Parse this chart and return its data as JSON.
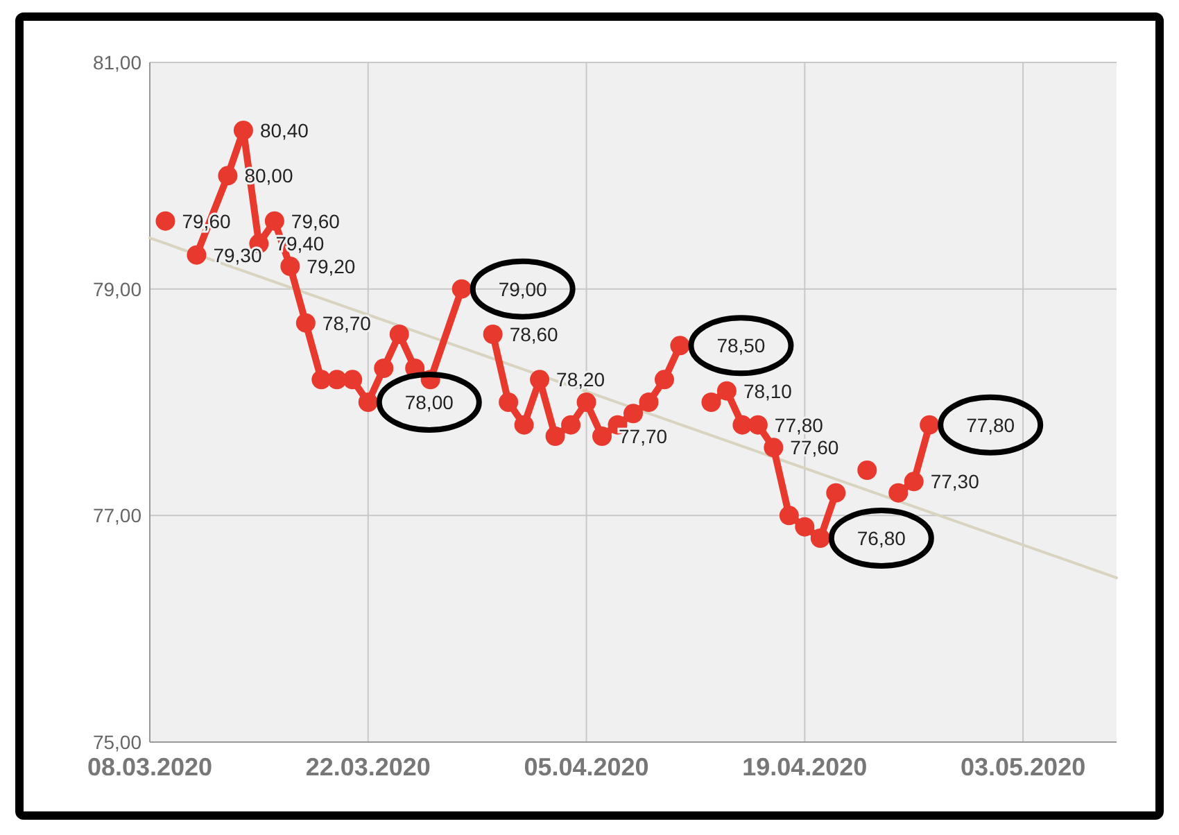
{
  "chart_data": {
    "type": "line",
    "x": [
      "2020-03-09",
      "2020-03-10",
      "2020-03-11",
      "2020-03-13",
      "2020-03-14",
      "2020-03-15",
      "2020-03-16",
      "2020-03-17",
      "2020-03-18",
      "2020-03-19",
      "2020-03-20",
      "2020-03-21",
      "2020-03-22",
      "2020-03-23",
      "2020-03-24",
      "2020-03-25",
      "2020-03-26",
      "2020-03-28",
      "2020-03-29",
      "2020-03-30",
      "2020-03-31",
      "2020-04-01",
      "2020-04-02",
      "2020-04-03",
      "2020-04-04",
      "2020-04-05",
      "2020-04-06",
      "2020-04-07",
      "2020-04-08",
      "2020-04-09",
      "2020-04-10",
      "2020-04-11",
      "2020-04-12",
      "2020-04-13",
      "2020-04-14",
      "2020-04-15",
      "2020-04-16",
      "2020-04-17",
      "2020-04-18",
      "2020-04-19",
      "2020-04-20",
      "2020-04-21",
      "2020-04-22",
      "2020-04-23",
      "2020-04-24",
      "2020-04-25",
      "2020-04-26",
      "2020-04-27"
    ],
    "series": [
      {
        "color": "#e8392f",
        "values": [
          79.6,
          null,
          79.3,
          80.0,
          80.4,
          79.4,
          79.6,
          79.2,
          78.7,
          78.2,
          78.2,
          78.2,
          78.0,
          78.3,
          78.6,
          78.3,
          78.2,
          79.0,
          null,
          78.6,
          78.0,
          77.8,
          78.2,
          77.7,
          77.8,
          78.0,
          77.7,
          77.8,
          77.9,
          78.0,
          78.2,
          78.5,
          null,
          78.0,
          78.1,
          77.8,
          77.8,
          77.6,
          77.0,
          76.9,
          76.8,
          77.2,
          null,
          77.4,
          null,
          77.2,
          77.3,
          77.8
        ],
        "value_labels": [
          "79,60",
          null,
          "79,30",
          "80,00",
          "80,40",
          "79,40",
          "79,60",
          "79,20",
          "78,70",
          null,
          null,
          null,
          null,
          null,
          null,
          null,
          null,
          null,
          null,
          "78,60",
          null,
          null,
          "78,20",
          null,
          null,
          null,
          "77,70",
          null,
          null,
          null,
          null,
          null,
          null,
          null,
          "78,10",
          null,
          "77,80",
          "77,60",
          null,
          null,
          null,
          null,
          null,
          null,
          null,
          null,
          "77,30",
          null
        ]
      },
      {
        "type": "line",
        "color": "#d9d4c0",
        "marker": "none",
        "x": [
          "2020-03-08",
          "2020-05-09"
        ],
        "values": [
          79.45,
          76.45
        ]
      }
    ],
    "xlim": [
      "2020-03-08",
      "2020-05-09"
    ],
    "xticks": [
      {
        "value": "2020-03-08",
        "label": "08.03.2020"
      },
      {
        "value": "2020-03-22",
        "label": "22.03.2020"
      },
      {
        "value": "2020-04-05",
        "label": "05.04.2020"
      },
      {
        "value": "2020-04-19",
        "label": "19.04.2020"
      },
      {
        "value": "2020-05-03",
        "label": "03.05.2020"
      }
    ],
    "ylim": [
      75,
      81
    ],
    "yticks": [
      {
        "value": 75,
        "label": "75,00"
      },
      {
        "value": 77,
        "label": "77,00"
      },
      {
        "value": 79,
        "label": "79,00"
      },
      {
        "value": 81,
        "label": "81,00"
      }
    ],
    "grid": true,
    "marker": "circle",
    "annotations": [
      {
        "text": "78,00",
        "x": "2020-03-22",
        "y": 78.0
      },
      {
        "text": "79,00",
        "x": "2020-03-28",
        "y": 79.0
      },
      {
        "text": "78,50",
        "x": "2020-04-11",
        "y": 78.5
      },
      {
        "text": "76,80",
        "x": "2020-04-20",
        "y": 76.8
      },
      {
        "text": "77,80",
        "x": "2020-04-27",
        "y": 77.8
      }
    ]
  }
}
